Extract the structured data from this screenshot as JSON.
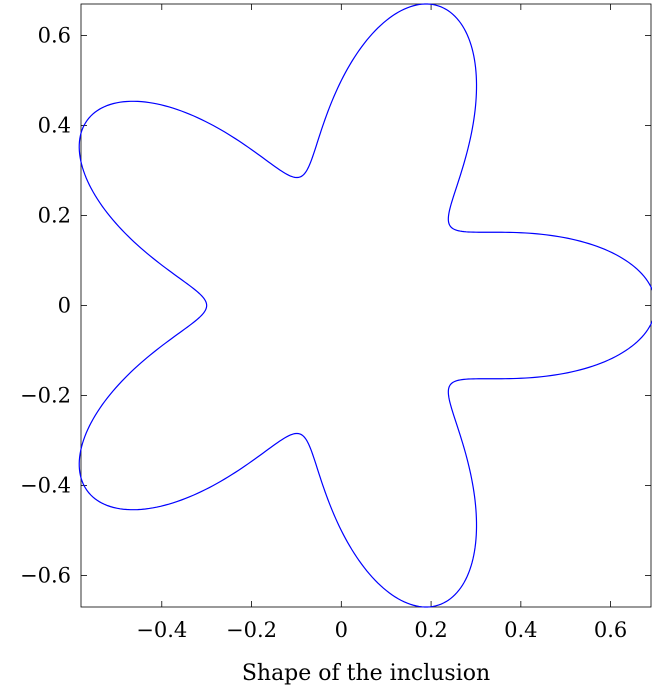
{
  "chart_data": {
    "type": "line",
    "title": "",
    "xlabel": "Shape of the inclusion",
    "ylabel": "",
    "xlim": [
      -0.58,
      0.69
    ],
    "ylim": [
      -0.67,
      0.67
    ],
    "grid": false,
    "legend": "none",
    "x_ticks": [
      -0.4,
      -0.2,
      0,
      0.2,
      0.4,
      0.6
    ],
    "x_tick_labels": [
      "−0.4",
      "−0.2",
      "0",
      "0.2",
      "0.4",
      "0.6"
    ],
    "y_ticks": [
      -0.6,
      -0.4,
      -0.2,
      0,
      0.2,
      0.4,
      0.6
    ],
    "y_tick_labels": [
      "−0.6",
      "−0.4",
      "−0.2",
      "0",
      "0.2",
      "0.4",
      "0.6"
    ],
    "curve": {
      "kind": "polar",
      "equation": "r(θ) = 0.5 + 0.2·cos(5θ)",
      "theta_range": [
        0,
        6.283185
      ],
      "samples": 720,
      "color": "#0000ff"
    }
  }
}
